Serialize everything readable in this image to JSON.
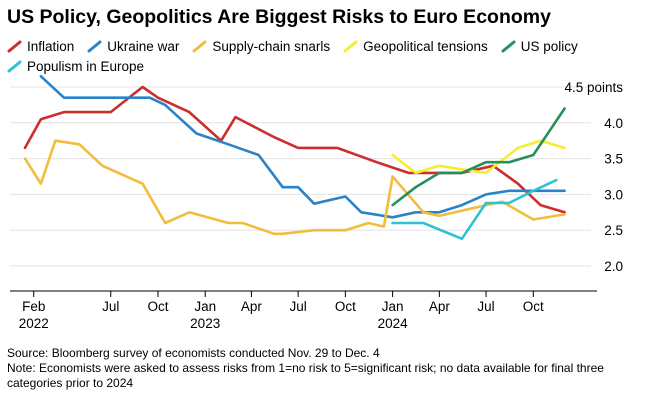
{
  "title": "US Policy, Geopolitics Are Biggest Risks to Euro Economy",
  "footnotes": {
    "source": "Source: Bloomberg survey of economists conducted Nov. 29 to Dec. 4",
    "note": "Note: Economists were asked to assess risks from 1=no risk to 5=significant risk; no data available for final three categories prior to 2024"
  },
  "chart_data": {
    "type": "line",
    "title": "US Policy, Geopolitics Are Biggest Risks to Euro Economy",
    "unit_label": "4.5 points",
    "ylim": [
      2.0,
      4.5
    ],
    "y_ticks": [
      {
        "value": 4.0,
        "label": "4.0"
      },
      {
        "value": 3.5,
        "label": "3.5"
      },
      {
        "value": 3.0,
        "label": "3.0"
      },
      {
        "value": 2.5,
        "label": "2.5"
      },
      {
        "value": 2.0,
        "label": "2.0"
      }
    ],
    "x_range": [
      "2022-01-15",
      "2024-12-31"
    ],
    "x_ticks": [
      {
        "date": "2022-02-01",
        "label": "Feb",
        "sub": "2022"
      },
      {
        "date": "2022-07-01",
        "label": "Jul",
        "sub": ""
      },
      {
        "date": "2022-10-01",
        "label": "Oct",
        "sub": ""
      },
      {
        "date": "2023-01-01",
        "label": "Jan",
        "sub": "2023"
      },
      {
        "date": "2023-04-01",
        "label": "Apr",
        "sub": ""
      },
      {
        "date": "2023-07-01",
        "label": "Jul",
        "sub": ""
      },
      {
        "date": "2023-10-01",
        "label": "Oct",
        "sub": ""
      },
      {
        "date": "2024-01-01",
        "label": "Jan",
        "sub": "2024"
      },
      {
        "date": "2024-04-01",
        "label": "Apr",
        "sub": ""
      },
      {
        "date": "2024-07-01",
        "label": "Jul",
        "sub": ""
      },
      {
        "date": "2024-10-01",
        "label": "Oct",
        "sub": ""
      }
    ],
    "grid": true,
    "legend_position": "top",
    "series": [
      {
        "name": "Inflation",
        "color": "#cc2d2d",
        "points": [
          [
            "2022-01-15",
            3.65
          ],
          [
            "2022-02-15",
            4.05
          ],
          [
            "2022-04-01",
            4.15
          ],
          [
            "2022-06-01",
            4.15
          ],
          [
            "2022-07-01",
            4.15
          ],
          [
            "2022-09-01",
            4.5
          ],
          [
            "2022-10-01",
            4.35
          ],
          [
            "2022-12-01",
            4.15
          ],
          [
            "2023-02-01",
            3.75
          ],
          [
            "2023-03-01",
            4.08
          ],
          [
            "2023-05-15",
            3.8
          ],
          [
            "2023-07-01",
            3.65
          ],
          [
            "2023-09-15",
            3.65
          ],
          [
            "2023-12-01",
            3.45
          ],
          [
            "2024-02-01",
            3.3
          ],
          [
            "2024-04-01",
            3.3
          ],
          [
            "2024-05-15",
            3.3
          ],
          [
            "2024-07-15",
            3.4
          ],
          [
            "2024-09-01",
            3.15
          ],
          [
            "2024-10-15",
            2.85
          ],
          [
            "2024-12-01",
            2.75
          ]
        ]
      },
      {
        "name": "Ukraine war",
        "color": "#2a83c8",
        "points": [
          [
            "2022-02-15",
            4.65
          ],
          [
            "2022-04-01",
            4.35
          ],
          [
            "2022-06-01",
            4.35
          ],
          [
            "2022-09-15",
            4.35
          ],
          [
            "2022-10-15",
            4.25
          ],
          [
            "2022-12-15",
            3.85
          ],
          [
            "2023-02-15",
            3.7
          ],
          [
            "2023-04-15",
            3.55
          ],
          [
            "2023-06-01",
            3.1
          ],
          [
            "2023-07-01",
            3.1
          ],
          [
            "2023-08-01",
            2.87
          ],
          [
            "2023-10-01",
            2.97
          ],
          [
            "2023-11-01",
            2.75
          ],
          [
            "2024-01-01",
            2.68
          ],
          [
            "2024-02-15",
            2.75
          ],
          [
            "2024-04-01",
            2.75
          ],
          [
            "2024-05-15",
            2.85
          ],
          [
            "2024-07-01",
            3.0
          ],
          [
            "2024-08-15",
            3.05
          ],
          [
            "2024-10-01",
            3.05
          ],
          [
            "2024-12-01",
            3.05
          ]
        ]
      },
      {
        "name": "Supply-chain snarls",
        "color": "#f2bd3c",
        "points": [
          [
            "2022-01-15",
            3.5
          ],
          [
            "2022-02-15",
            3.15
          ],
          [
            "2022-03-15",
            3.75
          ],
          [
            "2022-05-01",
            3.7
          ],
          [
            "2022-06-15",
            3.4
          ],
          [
            "2022-09-01",
            3.15
          ],
          [
            "2022-10-15",
            2.6
          ],
          [
            "2022-12-01",
            2.75
          ],
          [
            "2023-02-15",
            2.6
          ],
          [
            "2023-03-15",
            2.6
          ],
          [
            "2023-05-15",
            2.45
          ],
          [
            "2023-06-01",
            2.45
          ],
          [
            "2023-08-01",
            2.5
          ],
          [
            "2023-10-01",
            2.5
          ],
          [
            "2023-11-15",
            2.6
          ],
          [
            "2023-12-15",
            2.55
          ],
          [
            "2024-01-01",
            3.25
          ],
          [
            "2024-03-01",
            2.75
          ],
          [
            "2024-04-01",
            2.7
          ],
          [
            "2024-06-01",
            2.8
          ],
          [
            "2024-08-01",
            2.9
          ],
          [
            "2024-10-01",
            2.65
          ],
          [
            "2024-12-01",
            2.72
          ]
        ]
      },
      {
        "name": "Geopolitical tensions",
        "color": "#f4ef2c",
        "points": [
          [
            "2024-01-01",
            3.55
          ],
          [
            "2024-02-15",
            3.3
          ],
          [
            "2024-04-01",
            3.4
          ],
          [
            "2024-05-15",
            3.35
          ],
          [
            "2024-07-01",
            3.3
          ],
          [
            "2024-09-01",
            3.65
          ],
          [
            "2024-10-15",
            3.75
          ],
          [
            "2024-12-01",
            3.65
          ]
        ]
      },
      {
        "name": "US policy",
        "color": "#26905a",
        "points": [
          [
            "2024-01-01",
            2.85
          ],
          [
            "2024-02-15",
            3.1
          ],
          [
            "2024-04-01",
            3.3
          ],
          [
            "2024-05-15",
            3.3
          ],
          [
            "2024-07-01",
            3.45
          ],
          [
            "2024-08-15",
            3.45
          ],
          [
            "2024-10-01",
            3.55
          ],
          [
            "2024-12-01",
            4.2
          ]
        ]
      },
      {
        "name": "Populism in Europe",
        "color": "#2ec2d2",
        "points": [
          [
            "2024-01-01",
            2.6
          ],
          [
            "2024-03-01",
            2.6
          ],
          [
            "2024-05-15",
            2.38
          ],
          [
            "2024-07-01",
            2.88
          ],
          [
            "2024-08-15",
            2.88
          ],
          [
            "2024-10-01",
            3.05
          ],
          [
            "2024-11-15",
            3.2
          ]
        ]
      }
    ]
  }
}
